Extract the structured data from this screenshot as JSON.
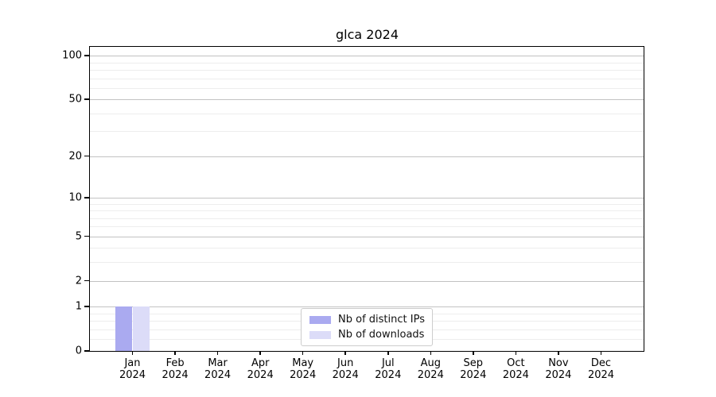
{
  "title": "glca 2024",
  "chart_data": {
    "type": "bar",
    "title": "glca 2024",
    "categories": [
      "Jan 2024",
      "Feb 2024",
      "Mar 2024",
      "Apr 2024",
      "May 2024",
      "Jun 2024",
      "Jul 2024",
      "Aug 2024",
      "Sep 2024",
      "Oct 2024",
      "Nov 2024",
      "Dec 2024"
    ],
    "series": [
      {
        "name": "Nb of distinct IPs",
        "color": "#aaaaf0",
        "values": [
          1,
          0,
          0,
          0,
          0,
          0,
          0,
          0,
          0,
          0,
          0,
          0
        ]
      },
      {
        "name": "Nb of downloads",
        "color": "#dcdcf8",
        "values": [
          1,
          0,
          0,
          0,
          0,
          0,
          0,
          0,
          0,
          0,
          0,
          0
        ]
      }
    ],
    "xlabel": "",
    "ylabel": "",
    "yscale": "log1p",
    "ylim": [
      0,
      115
    ],
    "y_major_ticks": [
      0,
      1,
      2,
      5,
      10,
      20,
      50,
      100
    ],
    "y_minor_ticks": [
      0.2,
      0.4,
      0.6,
      0.8,
      3,
      4,
      6,
      7,
      8,
      9,
      30,
      40,
      60,
      70,
      80,
      90
    ],
    "grid": true,
    "legend_position": "lower center",
    "bar_group_width_fraction": 0.8
  },
  "legend": {
    "entries": [
      {
        "label": "Nb of distinct IPs",
        "color": "#aaaaf0"
      },
      {
        "label": "Nb of downloads",
        "color": "#dcdcf8"
      }
    ]
  }
}
